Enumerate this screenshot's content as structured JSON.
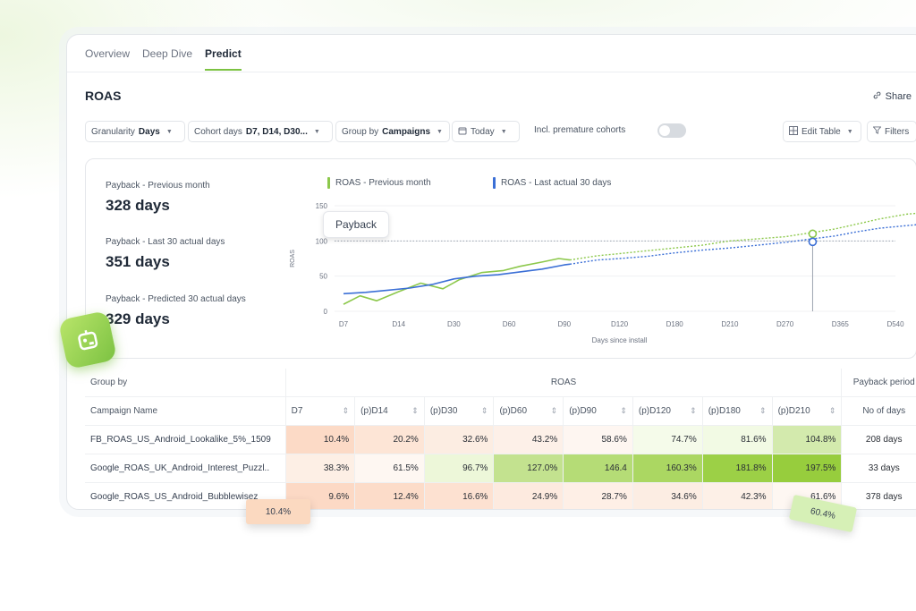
{
  "tabs": [
    "Overview",
    "Deep Dive",
    "Predict"
  ],
  "active_tab": "Predict",
  "title": "ROAS",
  "share_label": "Share",
  "toolbar": {
    "granularity_label": "Granularity",
    "granularity_value": "Days",
    "cohort_label": "Cohort days",
    "cohort_value": "D7, D14, D30...",
    "group_label": "Group by",
    "group_value": "Campaigns",
    "date_value": "Today",
    "premature_label": "Incl. premature cohorts",
    "premature_on": false,
    "edit_table_label": "Edit Table",
    "filters_label": "Filters"
  },
  "metrics": [
    {
      "label": "Payback - Previous month",
      "value": "328 days"
    },
    {
      "label": "Payback - Last 30 actual days",
      "value": "351 days"
    },
    {
      "label": "Payback - Predicted 30 actual days",
      "value": "329 days"
    }
  ],
  "tooltip": "Payback",
  "colors": {
    "green": "#8cc84b",
    "blue": "#3b6fd6",
    "accent": "#7cc242"
  },
  "chart_data": {
    "type": "line",
    "xlabel": "Days since install",
    "ylabel": "ROAS",
    "x_ticks": [
      "D7",
      "D14",
      "D30",
      "D60",
      "D90",
      "D120",
      "D180",
      "D210",
      "D270",
      "D365",
      "D540"
    ],
    "y_ticks": [
      0,
      50,
      100,
      150
    ],
    "ylim": [
      0,
      150
    ],
    "reference_line": 100,
    "series": [
      {
        "name": "ROAS - Previous month",
        "color": "#8cc84b",
        "actual": [
          [
            0,
            10
          ],
          [
            0.3,
            22
          ],
          [
            0.6,
            15
          ],
          [
            1,
            28
          ],
          [
            1.4,
            40
          ],
          [
            1.8,
            32
          ],
          [
            2.1,
            45
          ],
          [
            2.5,
            55
          ],
          [
            2.9,
            58
          ],
          [
            3.2,
            64
          ],
          [
            3.6,
            70
          ],
          [
            3.9,
            75
          ],
          [
            4.1,
            73
          ]
        ],
        "predicted": [
          [
            4.1,
            73
          ],
          [
            4.6,
            79
          ],
          [
            5,
            82
          ],
          [
            5.5,
            86
          ],
          [
            6,
            90
          ],
          [
            6.5,
            94
          ],
          [
            7,
            100
          ],
          [
            7.5,
            103
          ],
          [
            8,
            106
          ],
          [
            8.5,
            112
          ],
          [
            8.9,
            117
          ],
          [
            9.3,
            124
          ],
          [
            9.7,
            131
          ],
          [
            10.2,
            138
          ],
          [
            10.5,
            140
          ]
        ]
      },
      {
        "name": "ROAS - Last actual 30 days",
        "color": "#3b6fd6",
        "actual": [
          [
            0,
            25
          ],
          [
            0.4,
            27
          ],
          [
            0.8,
            30
          ],
          [
            1.2,
            33
          ],
          [
            1.6,
            38
          ],
          [
            2,
            46
          ],
          [
            2.4,
            50
          ],
          [
            2.8,
            52
          ],
          [
            3.2,
            56
          ],
          [
            3.6,
            60
          ],
          [
            4,
            66
          ],
          [
            4.1,
            67
          ]
        ],
        "predicted": [
          [
            4.1,
            67
          ],
          [
            4.6,
            73
          ],
          [
            5,
            75
          ],
          [
            5.5,
            78
          ],
          [
            6,
            83
          ],
          [
            6.5,
            87
          ],
          [
            7,
            90
          ],
          [
            7.5,
            94
          ],
          [
            8,
            98
          ],
          [
            8.5,
            103
          ],
          [
            8.9,
            107
          ],
          [
            9.3,
            113
          ],
          [
            9.7,
            118
          ],
          [
            10.1,
            121
          ],
          [
            10.5,
            124
          ]
        ]
      }
    ],
    "payback_markers": [
      8.5,
      8.5
    ]
  },
  "table": {
    "group_by_header": "Group by",
    "roas_header": "ROAS",
    "payback_header": "Payback period",
    "name_col": "Campaign Name",
    "days_col": "No of days",
    "columns": [
      "D7",
      "(p)D14",
      "(p)D30",
      "(p)D60",
      "(p)D90",
      "(p)D120",
      "(p)D180",
      "(p)D210"
    ],
    "rows": [
      {
        "name": "FB_ROAS_US_Android_Lookalike_5%_1509",
        "values": [
          "10.4%",
          "20.2%",
          "32.6%",
          "43.2%",
          "58.6%",
          "74.7%",
          "81.6%",
          "104.8%"
        ],
        "days": "208 days"
      },
      {
        "name": "Google_ROAS_UK_Android_Interest_Puzzl..",
        "values": [
          "38.3%",
          "61.5%",
          "96.7%",
          "127.0%",
          "146.4",
          "160.3%",
          "181.8%",
          "197.5%"
        ],
        "days": "33 days"
      },
      {
        "name": "Google_ROAS_US_Android_Bubblewisez",
        "values": [
          "9.6%",
          "12.4%",
          "16.6%",
          "24.9%",
          "28.7%",
          "34.6%",
          "42.3%",
          "61.6%"
        ],
        "days": "378 days"
      }
    ]
  },
  "floating_chips": [
    "10.4%",
    "60.4%"
  ]
}
